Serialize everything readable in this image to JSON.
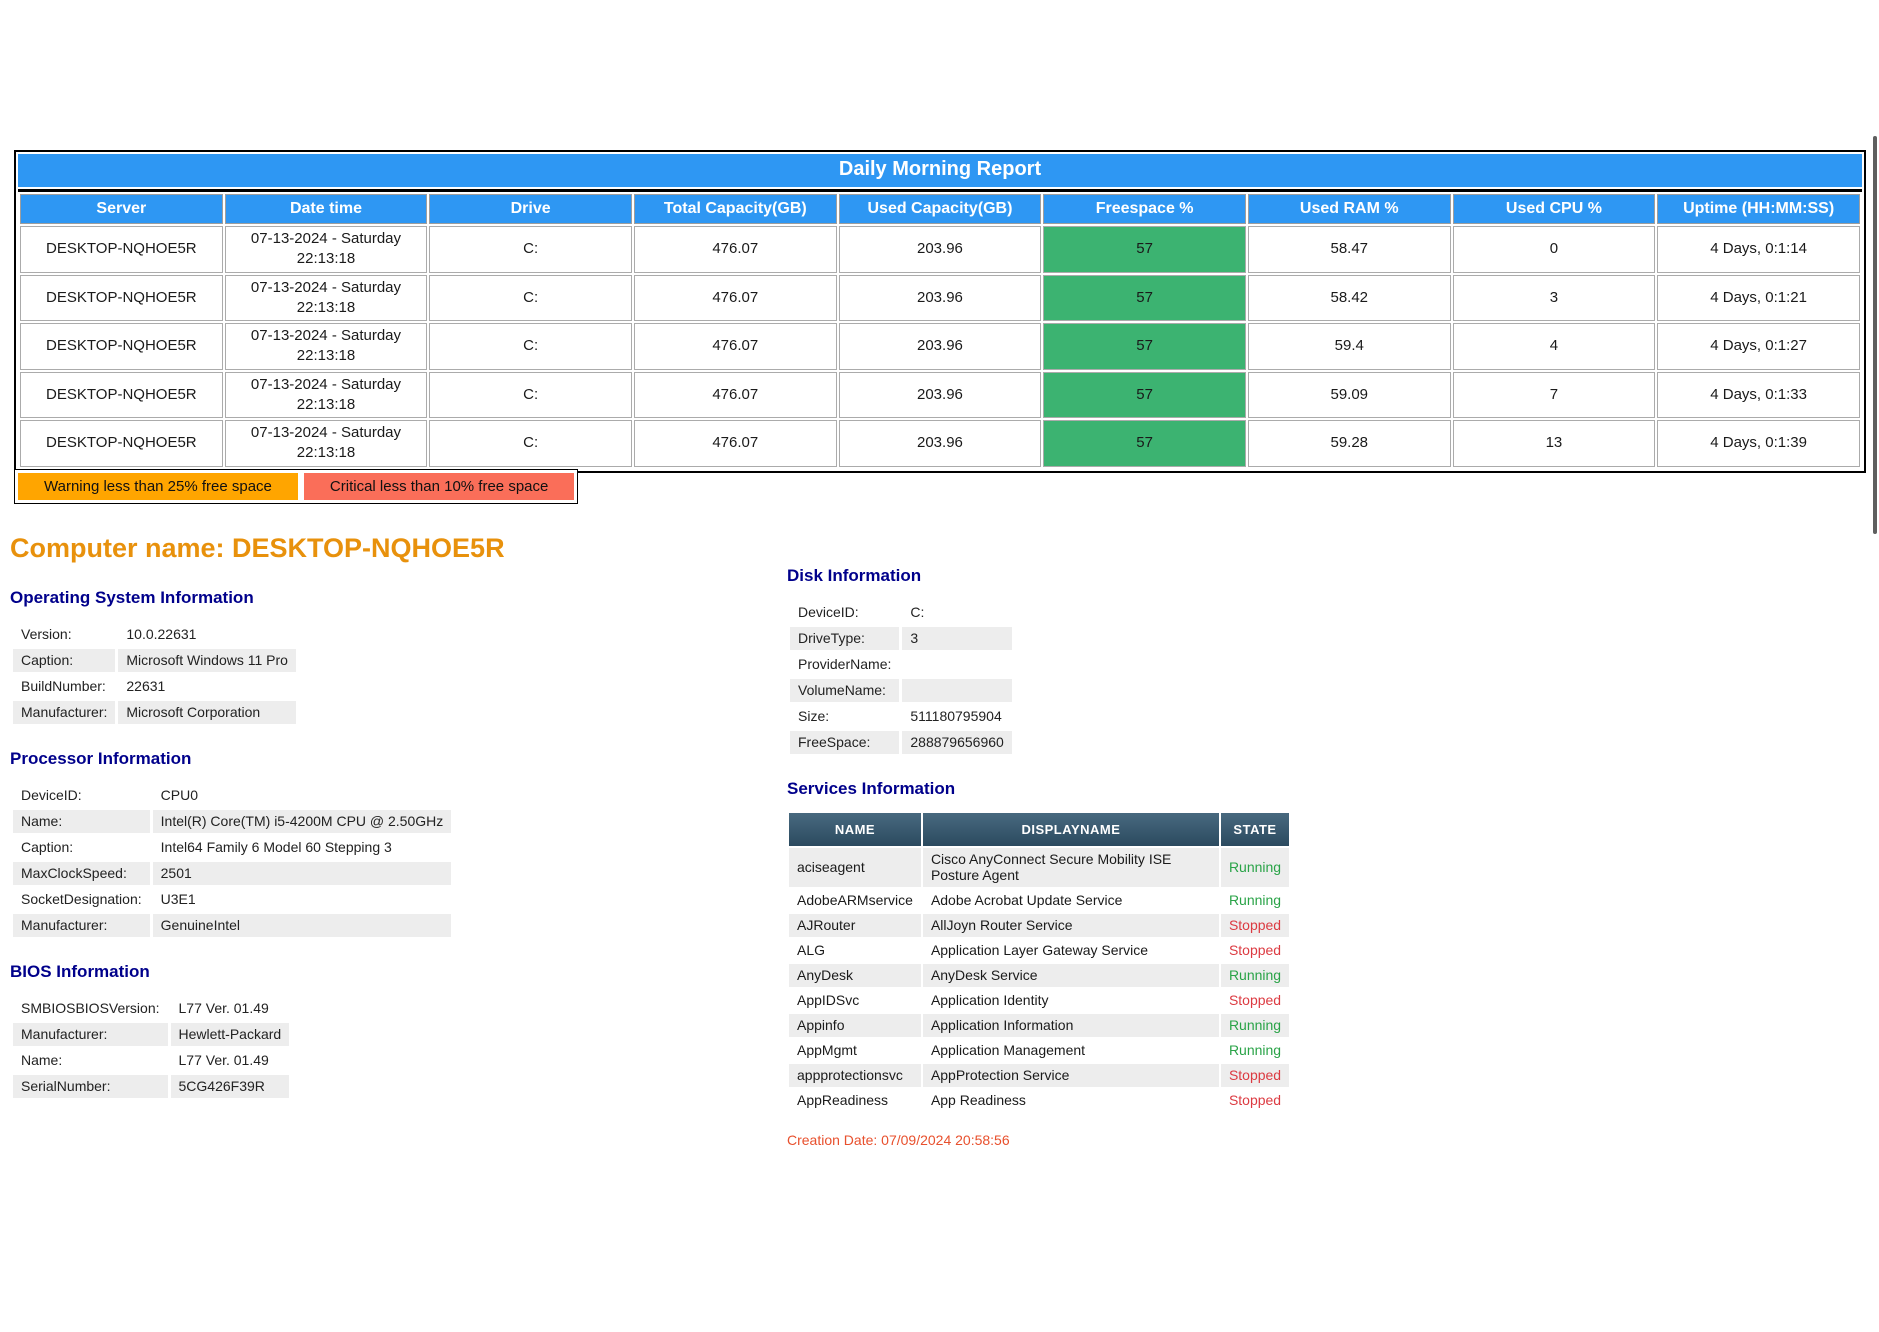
{
  "colors": {
    "header_blue": "#2E97F3",
    "freespace_green": "#3CB371",
    "warning_orange": "#FFA500",
    "critical_red": "#FA6E59",
    "section_navy": "#00008B",
    "computer_orange": "#E8910C",
    "running_green": "#29A347",
    "stopped_red": "#DC3A41",
    "creation_orange": "#E8502D"
  },
  "report_table": {
    "title": "Daily Morning Report",
    "headers": [
      "Server",
      "Date time",
      "Drive",
      "Total Capacity(GB)",
      "Used Capacity(GB)",
      "Freespace %",
      "Used RAM %",
      "Used CPU %",
      "Uptime (HH:MM:SS)"
    ],
    "rows": [
      {
        "server": "DESKTOP-NQHOE5R",
        "datetime": "07-13-2024 - Saturday 22:13:18",
        "drive": "C:",
        "total": "476.07",
        "used": "203.96",
        "freespace": "57",
        "ram": "58.47",
        "cpu": "0",
        "uptime": "4 Days, 0:1:14"
      },
      {
        "server": "DESKTOP-NQHOE5R",
        "datetime": "07-13-2024 - Saturday 22:13:18",
        "drive": "C:",
        "total": "476.07",
        "used": "203.96",
        "freespace": "57",
        "ram": "58.42",
        "cpu": "3",
        "uptime": "4 Days, 0:1:21"
      },
      {
        "server": "DESKTOP-NQHOE5R",
        "datetime": "07-13-2024 - Saturday 22:13:18",
        "drive": "C:",
        "total": "476.07",
        "used": "203.96",
        "freespace": "57",
        "ram": "59.4",
        "cpu": "4",
        "uptime": "4 Days, 0:1:27"
      },
      {
        "server": "DESKTOP-NQHOE5R",
        "datetime": "07-13-2024 - Saturday 22:13:18",
        "drive": "C:",
        "total": "476.07",
        "used": "203.96",
        "freespace": "57",
        "ram": "59.09",
        "cpu": "7",
        "uptime": "4 Days, 0:1:33"
      },
      {
        "server": "DESKTOP-NQHOE5R",
        "datetime": "07-13-2024 - Saturday 22:13:18",
        "drive": "C:",
        "total": "476.07",
        "used": "203.96",
        "freespace": "57",
        "ram": "59.28",
        "cpu": "13",
        "uptime": "4 Days, 0:1:39"
      }
    ]
  },
  "legend": {
    "warning": "Warning less than 25% free space",
    "critical": "Critical less than 10% free space"
  },
  "computer": {
    "heading": "Computer name: DESKTOP-NQHOE5R"
  },
  "sections": {
    "os": {
      "title": "Operating System Information",
      "rows": [
        {
          "label": "Version:",
          "value": "10.0.22631"
        },
        {
          "label": "Caption:",
          "value": "Microsoft Windows 11 Pro"
        },
        {
          "label": "BuildNumber:",
          "value": "22631"
        },
        {
          "label": "Manufacturer:",
          "value": "Microsoft Corporation"
        }
      ]
    },
    "processor": {
      "title": "Processor Information",
      "rows": [
        {
          "label": "DeviceID:",
          "value": "CPU0"
        },
        {
          "label": "Name:",
          "value": "Intel(R) Core(TM) i5-4200M CPU @ 2.50GHz"
        },
        {
          "label": "Caption:",
          "value": "Intel64 Family 6 Model 60 Stepping 3"
        },
        {
          "label": "MaxClockSpeed:",
          "value": "2501"
        },
        {
          "label": "SocketDesignation:",
          "value": "U3E1"
        },
        {
          "label": "Manufacturer:",
          "value": "GenuineIntel"
        }
      ]
    },
    "bios": {
      "title": "BIOS Information",
      "rows": [
        {
          "label": "SMBIOSBIOSVersion:",
          "value": "L77 Ver. 01.49"
        },
        {
          "label": "Manufacturer:",
          "value": "Hewlett-Packard"
        },
        {
          "label": "Name:",
          "value": "L77 Ver. 01.49"
        },
        {
          "label": "SerialNumber:",
          "value": "5CG426F39R"
        }
      ]
    },
    "disk": {
      "title": "Disk Information",
      "rows": [
        {
          "label": "DeviceID:",
          "value": "C:"
        },
        {
          "label": "DriveType:",
          "value": "3"
        },
        {
          "label": "ProviderName:",
          "value": ""
        },
        {
          "label": "VolumeName:",
          "value": ""
        },
        {
          "label": "Size:",
          "value": "511180795904"
        },
        {
          "label": "FreeSpace:",
          "value": "288879656960"
        }
      ]
    },
    "services": {
      "title": "Services Information",
      "headers": [
        "NAME",
        "DISPLAYNAME",
        "STATE"
      ],
      "rows": [
        {
          "name": "aciseagent",
          "display": "Cisco AnyConnect Secure Mobility ISE Posture Agent",
          "state": "Running"
        },
        {
          "name": "AdobeARMservice",
          "display": "Adobe Acrobat Update Service",
          "state": "Running"
        },
        {
          "name": "AJRouter",
          "display": "AllJoyn Router Service",
          "state": "Stopped"
        },
        {
          "name": "ALG",
          "display": "Application Layer Gateway Service",
          "state": "Stopped"
        },
        {
          "name": "AnyDesk",
          "display": "AnyDesk Service",
          "state": "Running"
        },
        {
          "name": "AppIDSvc",
          "display": "Application Identity",
          "state": "Stopped"
        },
        {
          "name": "Appinfo",
          "display": "Application Information",
          "state": "Running"
        },
        {
          "name": "AppMgmt",
          "display": "Application Management",
          "state": "Running"
        },
        {
          "name": "appprotectionsvc",
          "display": "AppProtection Service",
          "state": "Stopped"
        },
        {
          "name": "AppReadiness",
          "display": "App Readiness",
          "state": "Stopped"
        }
      ]
    }
  },
  "footer": {
    "creation_date": "Creation Date: 07/09/2024 20:58:56"
  }
}
